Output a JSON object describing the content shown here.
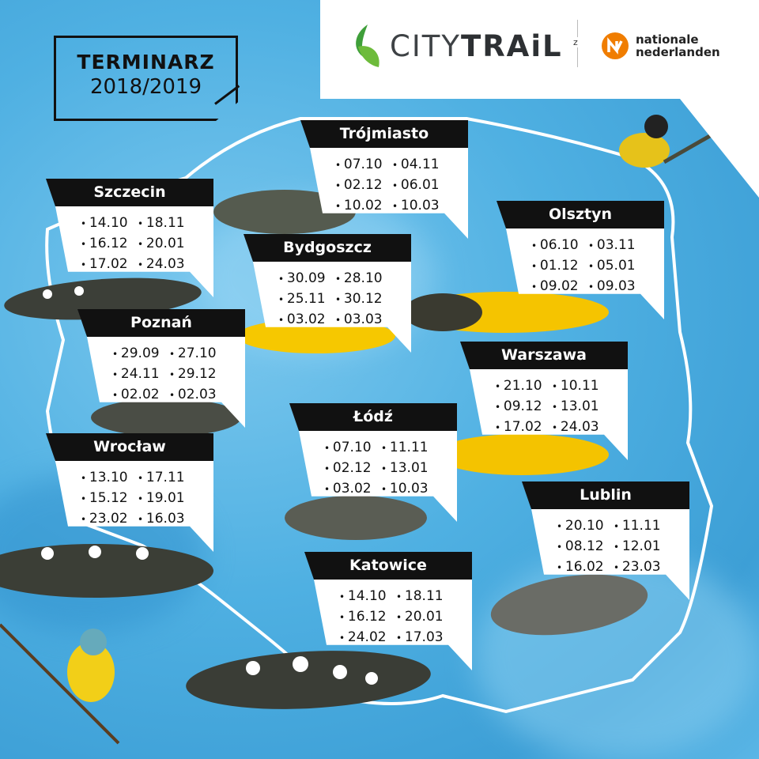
{
  "title": {
    "heading": "TERMINARZ",
    "season": "2018/2019"
  },
  "brand": {
    "city": "CITY",
    "trail": "TRAiL",
    "connector": "z",
    "partner_line1": "nationale",
    "partner_line2": "nederlanden",
    "green": "#3f9f3a",
    "orange": "#f07d00"
  },
  "cities": [
    {
      "name": "Trójmiasto",
      "dates": [
        "07.10",
        "04.11",
        "02.12",
        "06.01",
        "10.02",
        "10.03"
      ]
    },
    {
      "name": "Szczecin",
      "dates": [
        "14.10",
        "18.11",
        "16.12",
        "20.01",
        "17.02",
        "24.03"
      ]
    },
    {
      "name": "Bydgoszcz",
      "dates": [
        "30.09",
        "28.10",
        "25.11",
        "30.12",
        "03.02",
        "03.03"
      ]
    },
    {
      "name": "Olsztyn",
      "dates": [
        "06.10",
        "03.11",
        "01.12",
        "05.01",
        "09.02",
        "09.03"
      ]
    },
    {
      "name": "Poznań",
      "dates": [
        "29.09",
        "27.10",
        "24.11",
        "29.12",
        "02.02",
        "02.03"
      ]
    },
    {
      "name": "Warszawa",
      "dates": [
        "21.10",
        "10.11",
        "09.12",
        "13.01",
        "17.02",
        "24.03"
      ]
    },
    {
      "name": "Łódź",
      "dates": [
        "07.10",
        "11.11",
        "02.12",
        "13.01",
        "03.02",
        "10.03"
      ]
    },
    {
      "name": "Wrocław",
      "dates": [
        "13.10",
        "17.11",
        "15.12",
        "19.01",
        "23.02",
        "16.03"
      ]
    },
    {
      "name": "Lublin",
      "dates": [
        "20.10",
        "11.11",
        "08.12",
        "12.01",
        "16.02",
        "23.03"
      ]
    },
    {
      "name": "Katowice",
      "dates": [
        "14.10",
        "18.11",
        "16.12",
        "20.01",
        "24.02",
        "17.03"
      ]
    }
  ]
}
